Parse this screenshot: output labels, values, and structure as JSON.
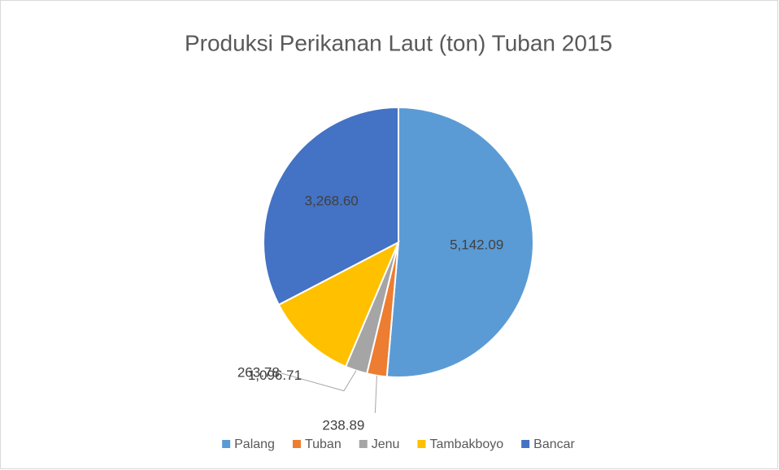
{
  "chart_data": {
    "type": "pie",
    "title": "Produksi Perikanan Laut (ton) Tuban 2015",
    "categories": [
      "Palang",
      "Tuban",
      "Jenu",
      "Tambakboyo",
      "Bancar"
    ],
    "values": [
      5142.09,
      238.89,
      263.78,
      1096.71,
      3268.6
    ],
    "value_labels": [
      "5,142.09",
      "238.89",
      "263.78",
      "1,096.71",
      "3,268.60"
    ],
    "colors": [
      "#5b9bd5",
      "#ed7d31",
      "#a5a5a5",
      "#ffc000",
      "#4472c4"
    ],
    "legend": "bottom"
  }
}
